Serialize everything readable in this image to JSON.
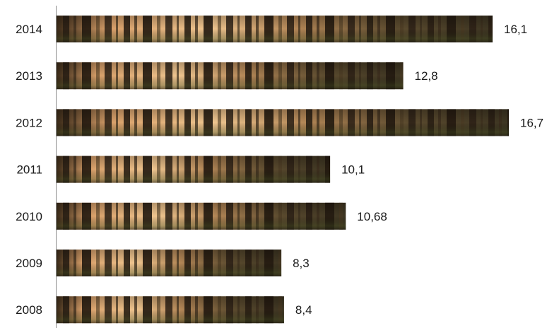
{
  "chart_data": {
    "type": "bar",
    "orientation": "horizontal",
    "title": "",
    "xlabel": "",
    "ylabel": "",
    "categories": [
      "2014",
      "2013",
      "2012",
      "2011",
      "2010",
      "2009",
      "2008"
    ],
    "values": [
      16.1,
      12.8,
      16.7,
      10.1,
      10.68,
      8.3,
      8.4
    ],
    "data_labels": [
      "16,1",
      "12,8",
      "16,7",
      "10,1",
      "10,68",
      "8,3",
      "8,4"
    ],
    "xlim": [
      0,
      16.7
    ],
    "grid": false,
    "legend": "none",
    "bar_fill": "forest photo texture",
    "colors": {
      "bar_dark": "#2e2418",
      "bar_light": "#e8b57a",
      "bar_mid": "#7a5a32",
      "axis": "#8c8c8c",
      "text": "#1a1a1a"
    }
  }
}
